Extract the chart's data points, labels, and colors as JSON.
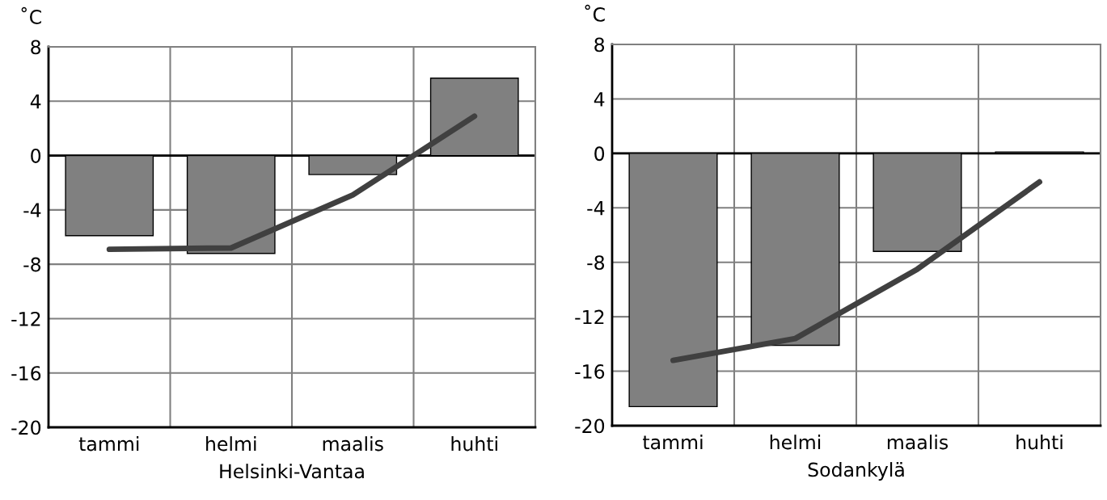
{
  "chart_data": [
    {
      "type": "bar",
      "xlabel": "Helsinki-Vantaa",
      "ylabel": "˚C",
      "categories": [
        "tammi",
        "helmi",
        "maalis",
        "huhti"
      ],
      "series": [
        {
          "color": "#808080",
          "values": [
            -5.9,
            -7.2,
            -1.4,
            5.7
          ]
        },
        {
          "type": "line",
          "color": "#404040",
          "values": [
            -6.9,
            -6.8,
            -2.9,
            2.9
          ]
        }
      ],
      "ylim": [
        -20,
        8
      ],
      "yticks": [
        -20,
        -16,
        -12,
        -8,
        -4,
        0,
        4,
        8
      ],
      "grid": true,
      "marker": "none",
      "line_style": "solid",
      "ref_lines": [
        {
          "axis": "y",
          "value": 0,
          "color": "#000000"
        }
      ]
    },
    {
      "type": "bar",
      "xlabel": "Sodankylä",
      "ylabel": "˚C",
      "categories": [
        "tammi",
        "helmi",
        "maalis",
        "huhti"
      ],
      "series": [
        {
          "color": "#808080",
          "values": [
            -18.6,
            -14.1,
            -7.2,
            0.1
          ]
        },
        {
          "type": "line",
          "color": "#404040",
          "values": [
            -15.2,
            -13.6,
            -8.5,
            -2.1
          ]
        }
      ],
      "ylim": [
        -20,
        8
      ],
      "yticks": [
        -20,
        -16,
        -12,
        -8,
        -4,
        0,
        4,
        8
      ],
      "grid": true,
      "marker": "none",
      "line_style": "solid",
      "ref_lines": [
        {
          "axis": "y",
          "value": 0,
          "color": "#000000"
        }
      ]
    }
  ]
}
